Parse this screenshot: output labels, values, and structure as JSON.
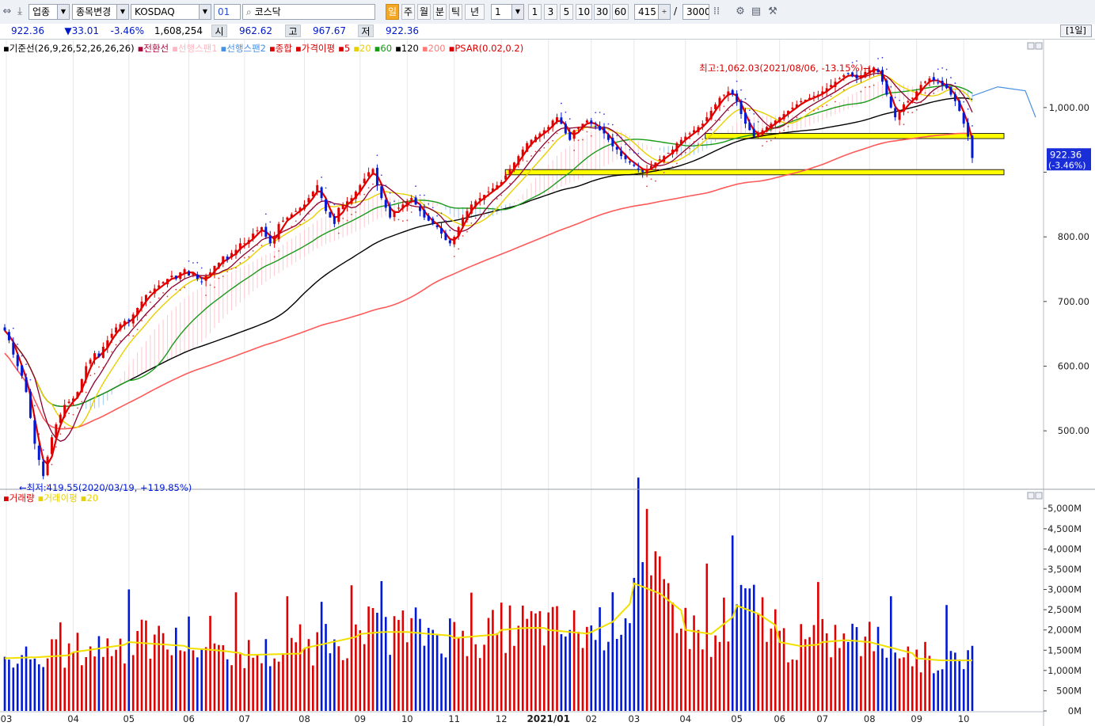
{
  "toolbar": {
    "market_type": "업종",
    "change_item": "종목변경",
    "index_name": "KOSDAQ",
    "index_code": "01",
    "search_value": "코스닥",
    "periods": [
      "일",
      "주",
      "월",
      "분",
      "틱",
      "년"
    ],
    "interval_value": "1",
    "intervals": [
      "1",
      "3",
      "5",
      "10",
      "30",
      "60"
    ],
    "count_value": "415",
    "count_sep": "/",
    "count_max": "3000"
  },
  "quote": {
    "price": "922.36",
    "change": "▼33.01",
    "change_pct": "-3.46%",
    "volume": "1,608,254",
    "open_label": "시",
    "open": "962.62",
    "high_label": "고",
    "high": "967.67",
    "low_label": "저",
    "low": "922.36",
    "period_badge": "[1일]"
  },
  "legend_price": [
    {
      "text": "기준선(26,9,26,52,26,26,26)",
      "color": "#000000"
    },
    {
      "text": "전환선",
      "color": "#b0003a"
    },
    {
      "text": "선행스팬1",
      "color": "#ffb6c1"
    },
    {
      "text": "선행스팬2",
      "color": "#4a90e2"
    },
    {
      "text": "종합",
      "color": "#d80000"
    },
    {
      "text": "가격이평",
      "color": "#d80000"
    },
    {
      "text": "5",
      "color": "#d80000"
    },
    {
      "text": "20",
      "color": "#e8d000"
    },
    {
      "text": "60",
      "color": "#1a9a1a"
    },
    {
      "text": "120",
      "color": "#000000"
    },
    {
      "text": "200",
      "color": "#ff7b7b"
    },
    {
      "text": "PSAR(0.02,0.2)",
      "color": "#d80000"
    }
  ],
  "legend_volume": [
    {
      "text": "거래량",
      "color": "#d80000"
    },
    {
      "text": "거래이평",
      "color": "#e8d000"
    },
    {
      "text": "20",
      "color": "#e8d000"
    }
  ],
  "annotations": {
    "high": "최고:1,062.03(2021/08/06, -13.15%)→",
    "low": "←최저:419.55(2020/03/19, +119.85%)",
    "last_price": "922.36",
    "last_pct": "(-3.46%)"
  },
  "chart_data": {
    "type": "candlestick",
    "price_axis": {
      "ticks": [
        500,
        600,
        700,
        800,
        1000
      ],
      "tick_labels": [
        "500.00",
        "600.00",
        "700.00",
        "800.00",
        "1,000.00"
      ],
      "range": [
        412,
        1088
      ]
    },
    "volume_axis": {
      "ticks": [
        0,
        500,
        1000,
        1500,
        2000,
        2500,
        3000,
        3500,
        4000,
        4500,
        5000
      ],
      "tick_labels": [
        "0M",
        "500M",
        "1,000M",
        "1,500M",
        "2,000M",
        "2,500M",
        "3,000M",
        "3,500M",
        "4,000M",
        "4,500M",
        "5,000M"
      ],
      "range": [
        0,
        5200
      ]
    },
    "x_labels": [
      "03",
      "04",
      "05",
      "06",
      "07",
      "08",
      "09",
      "10",
      "11",
      "12",
      "2021/01",
      "02",
      "03",
      "04",
      "05",
      "06",
      "07",
      "08",
      "09",
      "10"
    ],
    "month_starts": [
      "2020-03",
      "2020-04",
      "2020-05",
      "2020-06",
      "2020-07",
      "2020-08",
      "2020-09",
      "2020-10",
      "2020-11",
      "2020-12",
      "2021-01",
      "2021-02",
      "2021-03",
      "2021-04",
      "2021-05",
      "2021-06",
      "2021-07",
      "2021-08",
      "2021-09",
      "2021-10"
    ],
    "close_by_month": [
      {
        "month": "2020-03",
        "values": [
          655,
          640,
          618,
          600,
          585,
          560,
          520,
          480,
          455,
          430,
          460,
          490,
          510,
          525,
          540,
          545
        ]
      },
      {
        "month": "2020-04",
        "values": [
          550,
          560,
          580,
          600,
          610,
          620,
          615,
          630,
          640,
          650,
          660,
          665,
          670
        ]
      },
      {
        "month": "2020-05",
        "values": [
          670,
          680,
          690,
          700,
          710,
          715,
          720,
          725,
          730,
          735,
          740,
          735,
          745,
          750
        ]
      },
      {
        "month": "2020-06",
        "values": [
          740,
          745,
          735,
          730,
          740,
          745,
          755,
          760,
          770,
          765,
          775,
          780,
          790
        ]
      },
      {
        "month": "2020-07",
        "values": [
          790,
          795,
          805,
          810,
          815,
          800,
          790,
          800,
          820,
          825,
          830,
          835,
          840,
          845
        ]
      },
      {
        "month": "2020-08",
        "values": [
          850,
          860,
          870,
          880,
          860,
          840,
          830,
          820,
          845,
          850,
          855,
          860,
          870
        ]
      },
      {
        "month": "2020-09",
        "values": [
          880,
          890,
          900,
          905,
          880,
          860,
          845,
          830,
          840,
          845,
          850
        ]
      },
      {
        "month": "2020-10",
        "values": [
          855,
          860,
          850,
          840,
          830,
          825,
          820,
          815,
          805,
          795,
          790
        ]
      },
      {
        "month": "2020-11",
        "values": [
          800,
          815,
          830,
          840,
          850,
          855,
          860,
          865,
          870,
          875,
          880
        ]
      },
      {
        "month": "2020-12",
        "values": [
          885,
          895,
          905,
          915,
          925,
          935,
          945,
          950,
          955,
          960,
          965
        ]
      },
      {
        "month": "2021-01",
        "values": [
          970,
          980,
          985,
          975,
          960,
          950,
          965,
          970,
          975,
          980
        ]
      },
      {
        "month": "2021-02",
        "values": [
          975,
          970,
          965,
          960,
          950,
          940,
          935,
          925,
          920,
          915
        ]
      },
      {
        "month": "2021-03",
        "values": [
          910,
          905,
          900,
          905,
          910,
          915,
          920,
          925,
          930,
          935,
          945,
          950
        ]
      },
      {
        "month": "2021-04",
        "values": [
          955,
          960,
          965,
          970,
          975,
          985,
          995,
          1005,
          1015,
          1020,
          1025,
          1020
        ]
      },
      {
        "month": "2021-05",
        "values": [
          1010,
          990,
          975,
          965,
          955,
          960,
          965,
          970,
          975,
          980
        ]
      },
      {
        "month": "2021-06",
        "values": [
          985,
          990,
          995,
          1000,
          1005,
          1010,
          1012,
          1015,
          1018,
          1020
        ]
      },
      {
        "month": "2021-07",
        "values": [
          1025,
          1030,
          1035,
          1040,
          1045,
          1050,
          1052,
          1048,
          1045,
          1050,
          1055
        ]
      },
      {
        "month": "2021-08",
        "values": [
          1058,
          1062,
          1055,
          1040,
          1020,
          1000,
          985,
          995,
          1005,
          1010,
          1015
        ]
      },
      {
        "month": "2021-09",
        "values": [
          1025,
          1035,
          1040,
          1045,
          1042,
          1038,
          1035,
          1030,
          1020,
          1010,
          995
        ]
      },
      {
        "month": "2021-10",
        "values": [
          975,
          955,
          922
        ]
      }
    ],
    "support_zones": [
      {
        "from": "2021-04",
        "to": "2021-10",
        "low": 952,
        "high": 960
      },
      {
        "from": "2020-12",
        "to": "2021-10",
        "low": 896,
        "high": 904
      }
    ],
    "last_close": 922.36,
    "high": {
      "value": 1062.03,
      "date": "2021-08-06"
    },
    "low": {
      "value": 419.55,
      "date": "2020-03-19"
    },
    "volume_ma20_by_month": [
      {
        "month": "2020-03",
        "values": [
          1300,
          1330,
          1380
        ]
      },
      {
        "month": "2020-04",
        "values": [
          1450,
          1550,
          1650
        ]
      },
      {
        "month": "2020-05",
        "values": [
          1700,
          1650,
          1600
        ]
      },
      {
        "month": "2020-06",
        "values": [
          1550,
          1500,
          1420
        ]
      },
      {
        "month": "2020-07",
        "values": [
          1380,
          1400,
          1420
        ]
      },
      {
        "month": "2020-08",
        "values": [
          1550,
          1700,
          1850
        ]
      },
      {
        "month": "2020-09",
        "values": [
          1900,
          1950,
          1950
        ]
      },
      {
        "month": "2020-10",
        "values": [
          1950,
          1900,
          1850
        ]
      },
      {
        "month": "2020-11",
        "values": [
          1800,
          1850,
          1900
        ]
      },
      {
        "month": "2020-12",
        "values": [
          2000,
          2050,
          2050
        ]
      },
      {
        "month": "2021-01",
        "values": [
          2000,
          1950,
          1900
        ]
      },
      {
        "month": "2021-02",
        "values": [
          1950,
          2200,
          2750
        ]
      },
      {
        "month": "2021-03",
        "values": [
          3150,
          2900,
          2400
        ]
      },
      {
        "month": "2021-04",
        "values": [
          2000,
          1900,
          2400
        ]
      },
      {
        "month": "2021-05",
        "values": [
          2600,
          2400,
          2050
        ]
      },
      {
        "month": "2021-06",
        "values": [
          1700,
          1600,
          1650
        ]
      },
      {
        "month": "2021-07",
        "values": [
          1700,
          1750,
          1700
        ]
      },
      {
        "month": "2021-08",
        "values": [
          1700,
          1550,
          1400
        ]
      },
      {
        "month": "2021-09",
        "values": [
          1300,
          1250,
          1250
        ]
      },
      {
        "month": "2021-10",
        "values": [
          1250
        ]
      }
    ],
    "last_volume": 1608
  }
}
